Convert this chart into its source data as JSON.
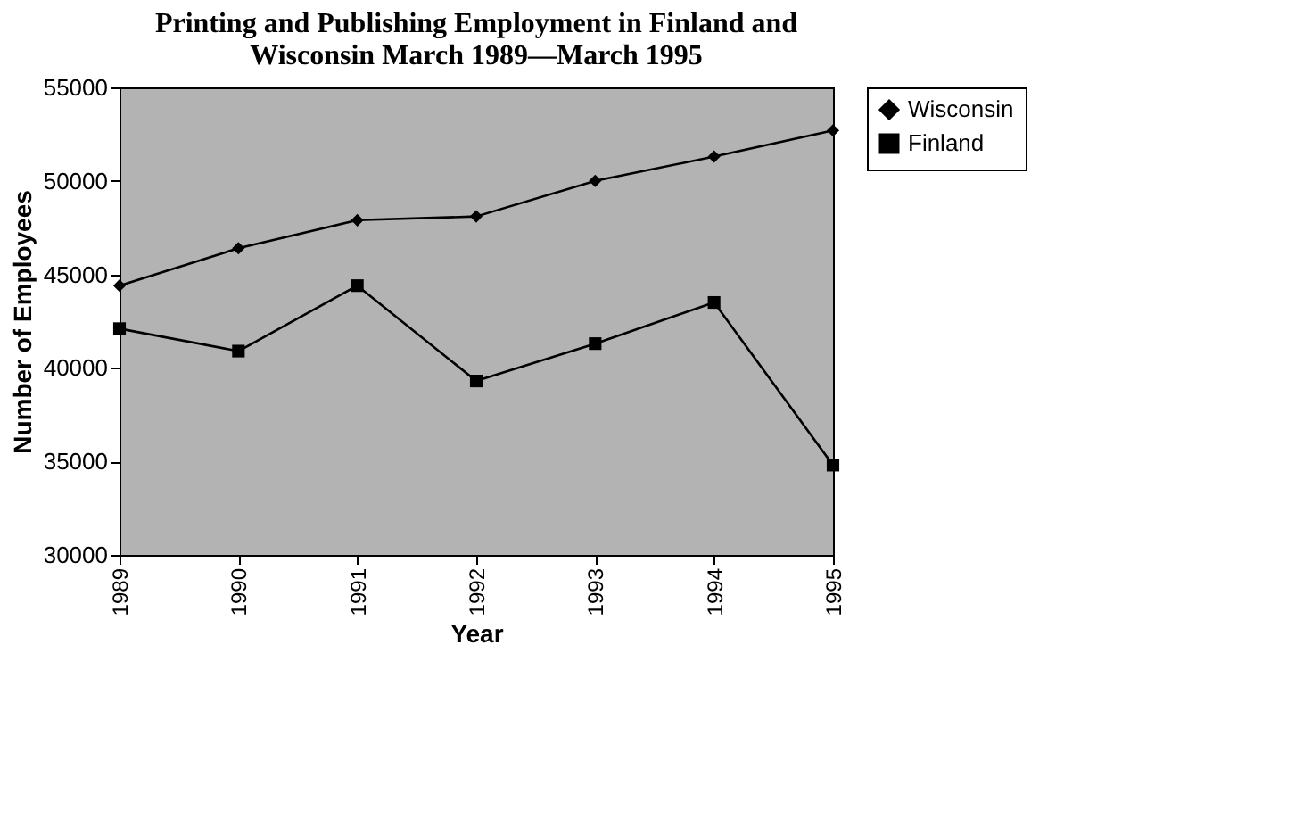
{
  "chart_data": {
    "type": "line",
    "title": [
      "Printing and Publishing Employment in Finland and",
      "Wisconsin March 1989—March 1995"
    ],
    "xlabel": "Year",
    "ylabel": "Number of Employees",
    "x": [
      1989,
      1990,
      1991,
      1992,
      1993,
      1994,
      1995
    ],
    "series": [
      {
        "name": "Wisconsin",
        "color": "#000000",
        "marker": "diamond",
        "values": [
          44400,
          46400,
          47900,
          48100,
          50000,
          51300,
          52700
        ]
      },
      {
        "name": "Finland",
        "color": "#000000",
        "marker": "square",
        "values": [
          42100,
          40900,
          44400,
          39300,
          41300,
          43500,
          34800
        ]
      }
    ],
    "xlim": [
      1989,
      1995
    ],
    "xticks": [
      1989,
      1990,
      1991,
      1992,
      1993,
      1994,
      1995
    ],
    "ylim": [
      30000,
      55000
    ],
    "yticks": [
      30000,
      35000,
      40000,
      45000,
      50000,
      55000
    ],
    "grid": false,
    "legend": "right",
    "line_style": "solid"
  }
}
